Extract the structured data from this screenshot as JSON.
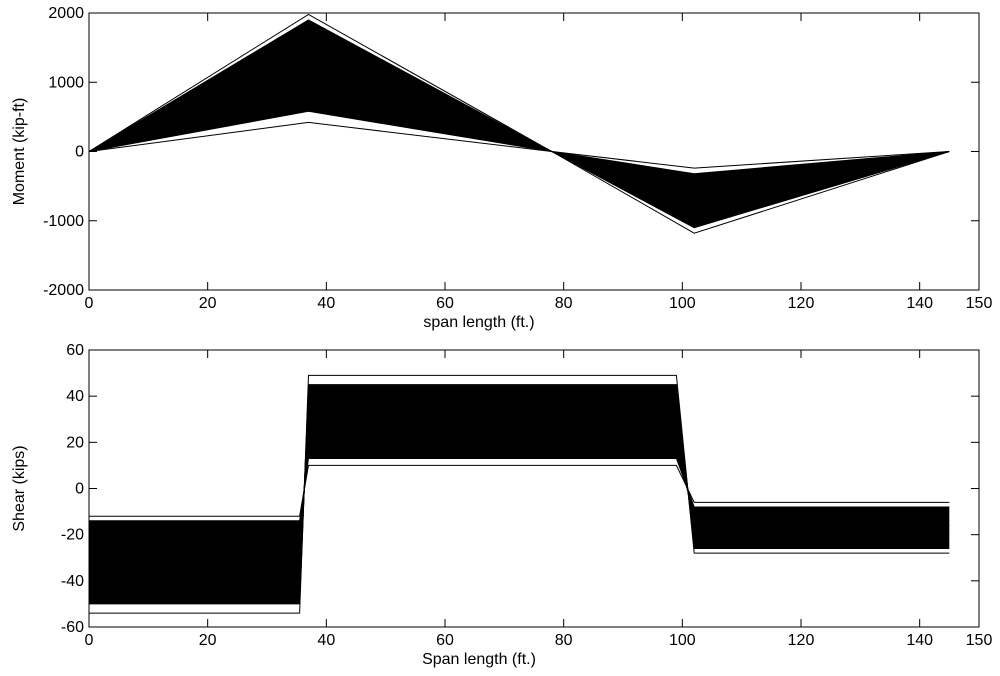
{
  "chart_data": [
    {
      "type": "line",
      "title": "",
      "xlabel": "span length (ft.)",
      "ylabel": "Moment (kip-ft)",
      "xlim": [
        0,
        150
      ],
      "ylim": [
        -2000,
        2000
      ],
      "xticks": [
        0,
        20,
        40,
        60,
        80,
        100,
        120,
        140,
        150
      ],
      "yticks": [
        -2000,
        -1000,
        0,
        1000,
        2000
      ],
      "grid": false,
      "legend": "none",
      "line_color": "#000000",
      "x": [
        0,
        37,
        78,
        102,
        145
      ],
      "series": [
        {
          "values": [
            0,
            1980,
            0,
            -1180,
            0
          ]
        },
        {
          "values": [
            0,
            1900,
            0,
            -1100,
            0
          ]
        },
        {
          "values": [
            0,
            1800,
            0,
            -1000,
            0
          ]
        },
        {
          "values": [
            0,
            1700,
            0,
            -920,
            0
          ]
        },
        {
          "values": [
            0,
            1550,
            0,
            -800,
            0
          ]
        },
        {
          "values": [
            0,
            1400,
            0,
            -700,
            0
          ]
        },
        {
          "values": [
            0,
            1200,
            0,
            -600,
            0
          ]
        },
        {
          "values": [
            0,
            1000,
            0,
            -520,
            0
          ]
        },
        {
          "values": [
            0,
            800,
            0,
            -420,
            0
          ]
        },
        {
          "values": [
            0,
            580,
            0,
            -320,
            0
          ]
        },
        {
          "values": [
            0,
            420,
            0,
            -240,
            0
          ]
        }
      ]
    },
    {
      "type": "line",
      "title": "",
      "xlabel": "Span length (ft.)",
      "ylabel": "Shear (kips)",
      "xlim": [
        0,
        150
      ],
      "ylim": [
        -60,
        60
      ],
      "xticks": [
        0,
        20,
        40,
        60,
        80,
        100,
        120,
        140,
        150
      ],
      "yticks": [
        -60,
        -40,
        -20,
        0,
        20,
        40,
        60
      ],
      "grid": false,
      "legend": "none",
      "line_color": "#000000",
      "x": [
        0,
        35.5,
        37,
        99,
        102,
        145
      ],
      "series": [
        {
          "values": [
            -54,
            -54,
            49,
            49,
            -28,
            -28
          ]
        },
        {
          "values": [
            -50,
            -50,
            45,
            45,
            -26,
            -26
          ]
        },
        {
          "values": [
            -46,
            -46,
            42,
            42,
            -24,
            -24
          ]
        },
        {
          "values": [
            -42,
            -42,
            38,
            38,
            -22,
            -22
          ]
        },
        {
          "values": [
            -38,
            -38,
            34,
            34,
            -20,
            -20
          ]
        },
        {
          "values": [
            -34,
            -34,
            30,
            30,
            -18,
            -18
          ]
        },
        {
          "values": [
            -30,
            -30,
            26,
            26,
            -16,
            -16
          ]
        },
        {
          "values": [
            -26,
            -26,
            22,
            22,
            -14,
            -14
          ]
        },
        {
          "values": [
            -22,
            -22,
            18,
            18,
            -12,
            -12
          ]
        },
        {
          "values": [
            -18,
            -18,
            15,
            15,
            -10,
            -10
          ]
        },
        {
          "values": [
            -14,
            -14,
            13,
            13,
            -8,
            -8
          ]
        },
        {
          "values": [
            -12,
            -12,
            10,
            10,
            -6,
            -6
          ]
        }
      ]
    }
  ]
}
